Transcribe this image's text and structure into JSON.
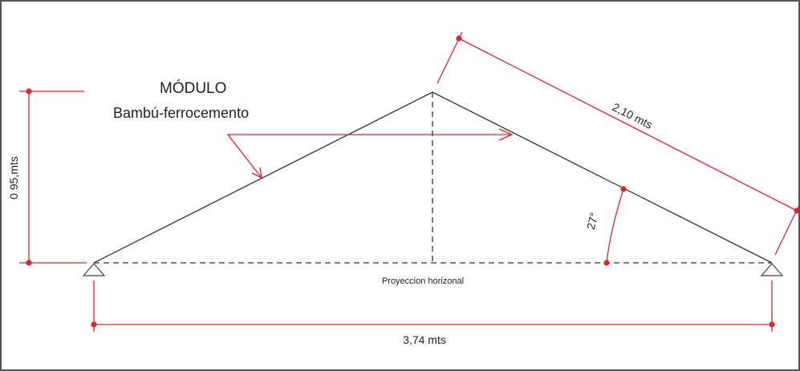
{
  "labels": {
    "module_title": "MÓDULO",
    "module_subtitle": "Bambú-ferrocemento",
    "height": "0 95,mts",
    "slope_length": "2,10 mts",
    "angle": "27°",
    "horizontal_projection": "Proyeccion horizonal",
    "span": "3,74 mts"
  },
  "colors": {
    "structure": "#333333",
    "dimension": "#e8202a",
    "border": "#555555",
    "text": "#222222"
  }
}
